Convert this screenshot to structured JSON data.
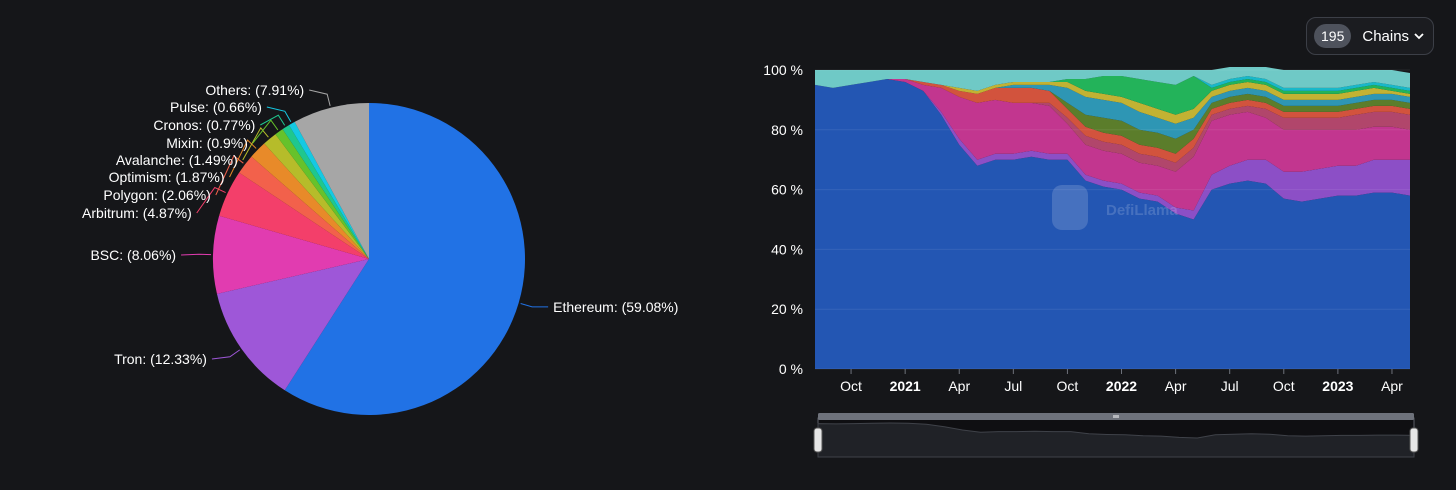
{
  "chain_selector": {
    "count": "195",
    "label": "Chains",
    "icon": "chevron-down-icon"
  },
  "watermark": "DefiLlama",
  "colors": {
    "background": "#151619",
    "ethereum_area": "#2356b3",
    "brush_track": "#6e727b"
  },
  "chart_data": [
    {
      "type": "pie",
      "slices": [
        {
          "label": "Ethereum",
          "display": "Ethereum: (59.08%)",
          "value": 59.08,
          "color": "#2172e5"
        },
        {
          "label": "Tron",
          "display": "Tron: (12.33%)",
          "value": 12.33,
          "color": "#9e57d8"
        },
        {
          "label": "BSC",
          "display": "BSC: (8.06%)",
          "value": 8.06,
          "color": "#e13cb0"
        },
        {
          "label": "Arbitrum",
          "display": "Arbitrum: (4.87%)",
          "value": 4.87,
          "color": "#f33f6a"
        },
        {
          "label": "Polygon",
          "display": "Polygon: (2.06%)",
          "value": 2.06,
          "color": "#f2614b"
        },
        {
          "label": "Optimism",
          "display": "Optimism: (1.87%)",
          "value": 1.87,
          "color": "#e88a29"
        },
        {
          "label": "Avalanche",
          "display": "Avalanche: (1.49%)",
          "value": 1.49,
          "color": "#b6bc2a"
        },
        {
          "label": "Mixin",
          "display": "Mixin: (0.9%)",
          "value": 0.9,
          "color": "#66c22b"
        },
        {
          "label": "Cronos",
          "display": "Cronos: (0.77%)",
          "value": 0.77,
          "color": "#1fc78e"
        },
        {
          "label": "Pulse",
          "display": "Pulse: (0.66%)",
          "value": 0.66,
          "color": "#15c9e3"
        },
        {
          "label": "Others",
          "display": "Others: (7.91%)",
          "value": 7.91,
          "color": "#a6a6a6"
        }
      ]
    },
    {
      "type": "area",
      "stacked_percent": true,
      "ylim": [
        0,
        100
      ],
      "yticks": [
        "0 %",
        "20 %",
        "40 %",
        "60 %",
        "80 %",
        "100 %"
      ],
      "x_range": [
        "2020-08",
        "2023-05"
      ],
      "xticks": [
        {
          "label": "Oct",
          "date": "2020-10",
          "bold": false
        },
        {
          "label": "2021",
          "date": "2021-01",
          "bold": true
        },
        {
          "label": "Apr",
          "date": "2021-04",
          "bold": false
        },
        {
          "label": "Jul",
          "date": "2021-07",
          "bold": false
        },
        {
          "label": "Oct",
          "date": "2021-10",
          "bold": false
        },
        {
          "label": "2022",
          "date": "2022-01",
          "bold": true
        },
        {
          "label": "Apr",
          "date": "2022-04",
          "bold": false
        },
        {
          "label": "Jul",
          "date": "2022-07",
          "bold": false
        },
        {
          "label": "Oct",
          "date": "2022-10",
          "bold": false
        },
        {
          "label": "2023",
          "date": "2023-01",
          "bold": true
        },
        {
          "label": "Apr",
          "date": "2023-04",
          "bold": false
        }
      ],
      "x": [
        "2020-08",
        "2020-09",
        "2020-10",
        "2020-11",
        "2020-12",
        "2021-01",
        "2021-02",
        "2021-03",
        "2021-04",
        "2021-05",
        "2021-06",
        "2021-07",
        "2021-08",
        "2021-09",
        "2021-10",
        "2021-11",
        "2021-12",
        "2022-01",
        "2022-02",
        "2022-03",
        "2022-04",
        "2022-05",
        "2022-06",
        "2022-07",
        "2022-08",
        "2022-09",
        "2022-10",
        "2022-11",
        "2022-12",
        "2023-01",
        "2023-02",
        "2023-03",
        "2023-04",
        "2023-05"
      ],
      "series": [
        {
          "name": "Ethereum",
          "color": "#2356b3",
          "values": [
            95,
            94,
            95,
            96,
            97,
            96,
            93,
            85,
            75,
            68,
            70,
            70,
            71,
            70,
            70,
            63,
            61,
            60,
            57,
            56,
            52,
            50,
            60,
            62,
            63,
            62,
            57,
            56,
            57,
            58,
            58,
            59,
            59,
            58
          ]
        },
        {
          "name": "Tron",
          "color": "#8c4fc6",
          "values": [
            0,
            0,
            0,
            0,
            0,
            0,
            0,
            1,
            2,
            2,
            2,
            2,
            2,
            2,
            2,
            2,
            2,
            2,
            2,
            2,
            2,
            3,
            5,
            6,
            7,
            8,
            9,
            10,
            10,
            10,
            10,
            11,
            11,
            12
          ]
        },
        {
          "name": "BSC",
          "color": "#c2368f",
          "values": [
            0,
            0,
            0,
            0,
            0,
            1,
            2,
            8,
            14,
            19,
            18,
            17,
            16,
            16,
            10,
            10,
            10,
            10,
            10,
            10,
            12,
            18,
            18,
            17,
            16,
            14,
            14,
            14,
            13,
            12,
            12,
            11,
            11,
            10
          ]
        },
        {
          "name": "Arbitrum",
          "color": "#b1466b",
          "values": [
            0,
            0,
            0,
            0,
            0,
            0,
            0,
            0,
            0,
            0,
            0,
            0,
            0,
            1,
            2,
            3,
            3,
            3,
            3,
            3,
            3,
            3,
            2,
            2,
            2,
            3,
            4,
            4,
            4,
            4,
            5,
            5,
            5,
            5
          ]
        },
        {
          "name": "Polygon",
          "color": "#d2533d",
          "values": [
            0,
            0,
            0,
            0,
            0,
            0,
            1,
            1,
            2,
            3,
            4,
            5,
            5,
            4,
            3,
            3,
            3,
            3,
            3,
            3,
            3,
            3,
            2,
            2,
            2,
            2,
            2,
            2,
            2,
            2,
            2,
            2,
            2,
            2
          ]
        },
        {
          "name": "Optimism",
          "color": "#5b7d2b",
          "values": [
            0,
            0,
            0,
            0,
            0,
            0,
            0,
            0,
            0,
            0,
            0,
            0,
            0,
            0,
            2,
            4,
            5,
            5,
            5,
            5,
            5,
            3,
            2,
            2,
            2,
            2,
            2,
            2,
            2,
            2,
            2,
            2,
            2,
            2
          ]
        },
        {
          "name": "Avalanche",
          "color": "#2e96b4",
          "values": [
            0,
            0,
            0,
            0,
            0,
            0,
            0,
            0,
            0,
            0,
            0,
            1,
            1,
            2,
            5,
            6,
            6,
            6,
            6,
            5,
            5,
            4,
            2,
            2,
            2,
            2,
            2,
            2,
            2,
            2,
            2,
            2,
            2,
            2
          ]
        },
        {
          "name": "Mixin",
          "color": "#c2b233",
          "values": [
            0,
            0,
            0,
            0,
            0,
            0,
            0,
            0,
            1,
            1,
            1,
            1,
            1,
            1,
            2,
            2,
            2,
            2,
            3,
            3,
            3,
            3,
            2,
            2,
            2,
            2,
            2,
            2,
            2,
            2,
            2,
            2,
            1,
            1
          ]
        },
        {
          "name": "Cronos",
          "color": "#23b35a",
          "values": [
            0,
            0,
            0,
            0,
            0,
            0,
            0,
            0,
            0,
            0,
            0,
            0,
            0,
            0,
            1,
            4,
            6,
            7,
            8,
            9,
            10,
            11,
            1,
            1,
            1,
            1,
            1,
            1,
            1,
            1,
            1,
            1,
            1,
            1
          ]
        },
        {
          "name": "Pulse",
          "color": "#19b8c9",
          "values": [
            0,
            0,
            0,
            0,
            0,
            0,
            0,
            0,
            0,
            0,
            0,
            0,
            0,
            0,
            0,
            0,
            0,
            0,
            0,
            0,
            0,
            0,
            1,
            1,
            1,
            1,
            1,
            1,
            1,
            1,
            1,
            1,
            1,
            1
          ]
        },
        {
          "name": "Others",
          "color": "#6fc9c6",
          "values": [
            5,
            6,
            5,
            4,
            3,
            3,
            4,
            5,
            6,
            7,
            5,
            4,
            4,
            4,
            3,
            3,
            2,
            2,
            3,
            4,
            5,
            2,
            5,
            4,
            3,
            4,
            6,
            6,
            6,
            6,
            5,
            4,
            5,
            5
          ]
        }
      ]
    }
  ]
}
